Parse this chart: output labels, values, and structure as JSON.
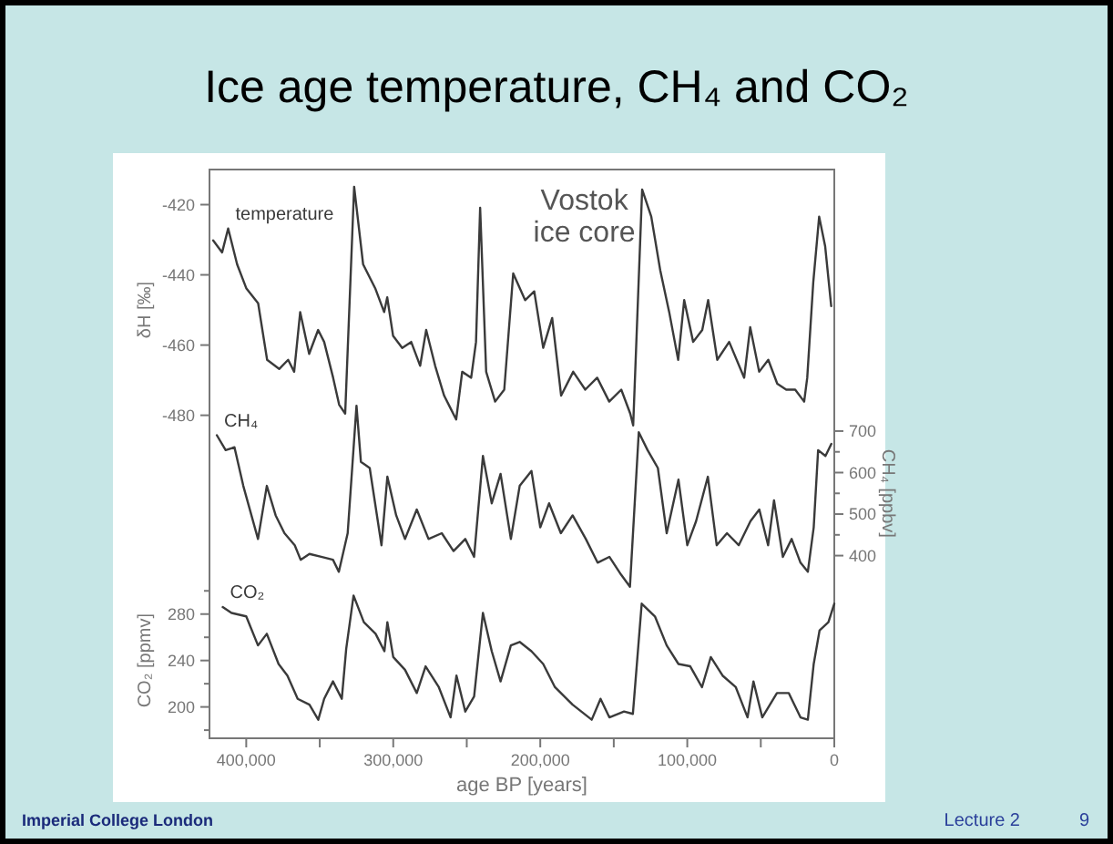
{
  "chart_data": {
    "type": "line",
    "title": "Ice age temperature, CH₄ and CO₂",
    "xlabel": "age BP  [years]",
    "ylabel": "δH [‰]",
    "y2label": "CH₄ [ppbv]",
    "y3label": "CO₂ [ppmv]",
    "annotations": [
      "Vostok ice core",
      "Imperial College London",
      "Lecture 2",
      "9"
    ],
    "xlim": [
      425000,
      0
    ],
    "xticks": [
      {
        "value": 400000,
        "label": "400,000"
      },
      {
        "value": 350000,
        "label": null
      },
      {
        "value": 300000,
        "label": "300,000"
      },
      {
        "value": 250000,
        "label": null
      },
      {
        "value": 200000,
        "label": "200,000"
      },
      {
        "value": 150000,
        "label": null
      },
      {
        "value": 100000,
        "label": "100,000"
      },
      {
        "value": 50000,
        "label": null
      },
      0
    ],
    "ylim": [
      -572,
      -410
    ],
    "yticks": [
      -420,
      -440,
      -460,
      -480
    ],
    "y2lim": [
      -40,
      1330
    ],
    "y2ticks": [
      400,
      {
        "value": 450,
        "label": null
      },
      500,
      {
        "value": 550,
        "label": null
      },
      600,
      {
        "value": 650,
        "label": null
      },
      700
    ],
    "y3lim": [
      173,
      663
    ],
    "y3ticks": [
      {
        "value": 180,
        "label": null
      },
      200,
      {
        "value": 220,
        "label": null
      },
      240,
      {
        "value": 260,
        "label": null
      },
      280,
      {
        "value": 300,
        "label": null
      }
    ],
    "series": [
      {
        "name": "temperature",
        "color": "#3a3a3a",
        "axis": "y",
        "x": [
          422500,
          416400,
          412300,
          406200,
          400000,
          391900,
          385800,
          377600,
          371500,
          367400,
          363300,
          357200,
          351100,
          347000,
          340900,
          336800,
          332700,
          326600,
          320500,
          312300,
          306200,
          304100,
          300100,
          293900,
          287800,
          281700,
          277600,
          271500,
          265400,
          261300,
          257200,
          253100,
          247000,
          243700,
          240900,
          236800,
          230700,
          224500,
          218400,
          210300,
          204100,
          198000,
          191900,
          185800,
          177600,
          169400,
          161300,
          153100,
          144900,
          138800,
          136800,
          130700,
          124500,
          118400,
          112300,
          106200,
          102100,
          96000,
          89800,
          85800,
          79600,
          71500,
          61300,
          57200,
          51100,
          44900,
          38800,
          32700,
          26600,
          20500,
          18400,
          14300,
          10300,
          6200,
          2100
        ],
        "values": [
          -430.2,
          -433.6,
          -426.8,
          -437,
          -443.8,
          -448.1,
          -464.2,
          -466.8,
          -464.2,
          -467.6,
          -450.6,
          -462.5,
          -455.7,
          -459.1,
          -469.3,
          -477,
          -479.5,
          -414.9,
          -437,
          -443.8,
          -450.6,
          -446.4,
          -457.4,
          -460.8,
          -459.1,
          -465.9,
          -455.7,
          -465.9,
          -474.4,
          -477.8,
          -481.2,
          -467.6,
          -469.3,
          -459.1,
          -420.9,
          -467.6,
          -476.1,
          -472.7,
          -439.6,
          -447.2,
          -444.7,
          -460.8,
          -452.3,
          -474.4,
          -467.6,
          -472.7,
          -469.3,
          -476.1,
          -472.7,
          -479.5,
          -482.9,
          -415.7,
          -423.4,
          -438.7,
          -450.6,
          -464.2,
          -447.2,
          -459.1,
          -455.7,
          -447.2,
          -464.2,
          -459.1,
          -469.3,
          -454.9,
          -467.6,
          -464.2,
          -471,
          -472.7,
          -472.7,
          -476.1,
          -469.3,
          -442.1,
          -423.4,
          -431.9,
          -448.9
        ]
      },
      {
        "name": "CH₄",
        "color": "#3a3a3a",
        "axis": "y2",
        "x": [
          420000,
          414000,
          408000,
          402000,
          392000,
          386000,
          380000,
          374000,
          367000,
          363000,
          357000,
          349000,
          341000,
          337000,
          331000,
          325000,
          322000,
          316000,
          308000,
          304000,
          298000,
          292000,
          284000,
          276000,
          267000,
          259000,
          251000,
          245000,
          239000,
          233000,
          227000,
          220000,
          214000,
          206000,
          200000,
          194000,
          186000,
          178000,
          169000,
          161000,
          153000,
          145000,
          139000,
          133000,
          127000,
          120000,
          114000,
          106000,
          100000,
          94000,
          86000,
          80000,
          73000,
          65000,
          57000,
          51000,
          45000,
          41000,
          35000,
          29000,
          23000,
          18000,
          14000,
          11000,
          6000,
          2000
        ],
        "values": [
          690,
          654,
          661,
          568,
          440,
          568,
          497,
          454,
          425,
          390,
          404,
          397,
          390,
          361,
          454,
          761,
          626,
          611,
          425,
          590,
          497,
          440,
          511,
          440,
          454,
          411,
          440,
          397,
          640,
          526,
          597,
          440,
          568,
          604,
          468,
          526,
          454,
          497,
          440,
          383,
          397,
          354,
          325,
          697,
          654,
          611,
          454,
          583,
          425,
          483,
          590,
          425,
          454,
          425,
          483,
          511,
          425,
          533,
          397,
          440,
          383,
          361,
          468,
          654,
          640,
          669
        ]
      },
      {
        "name": "CO₂",
        "color": "#3a3a3a",
        "axis": "y3",
        "x": [
          416000,
          410000,
          400000,
          392000,
          386000,
          378000,
          372000,
          365000,
          357000,
          351000,
          347000,
          341000,
          335000,
          332000,
          327000,
          320000,
          312000,
          306000,
          304000,
          300000,
          292000,
          284000,
          278000,
          269000,
          261000,
          257000,
          251000,
          245000,
          239000,
          233000,
          227000,
          220000,
          214000,
          206000,
          198000,
          190000,
          178000,
          165000,
          159000,
          153000,
          143000,
          137000,
          131000,
          122000,
          114000,
          106000,
          98000,
          90000,
          84000,
          76000,
          67000,
          59000,
          55000,
          49000,
          39000,
          31000,
          23000,
          18000,
          14000,
          10000,
          4000,
          0
        ],
        "values": [
          286,
          281,
          278,
          253,
          263,
          237,
          227,
          207,
          202,
          189,
          207,
          222,
          207,
          250,
          296,
          273,
          263,
          248,
          273,
          243,
          232,
          212,
          235,
          217,
          191,
          227,
          196,
          209,
          281,
          248,
          222,
          253,
          256,
          248,
          237,
          217,
          202,
          189,
          207,
          191,
          196,
          194,
          289,
          278,
          253,
          237,
          235,
          217,
          243,
          227,
          217,
          191,
          222,
          191,
          212,
          212,
          191,
          189,
          237,
          266,
          273,
          289
        ]
      }
    ]
  }
}
